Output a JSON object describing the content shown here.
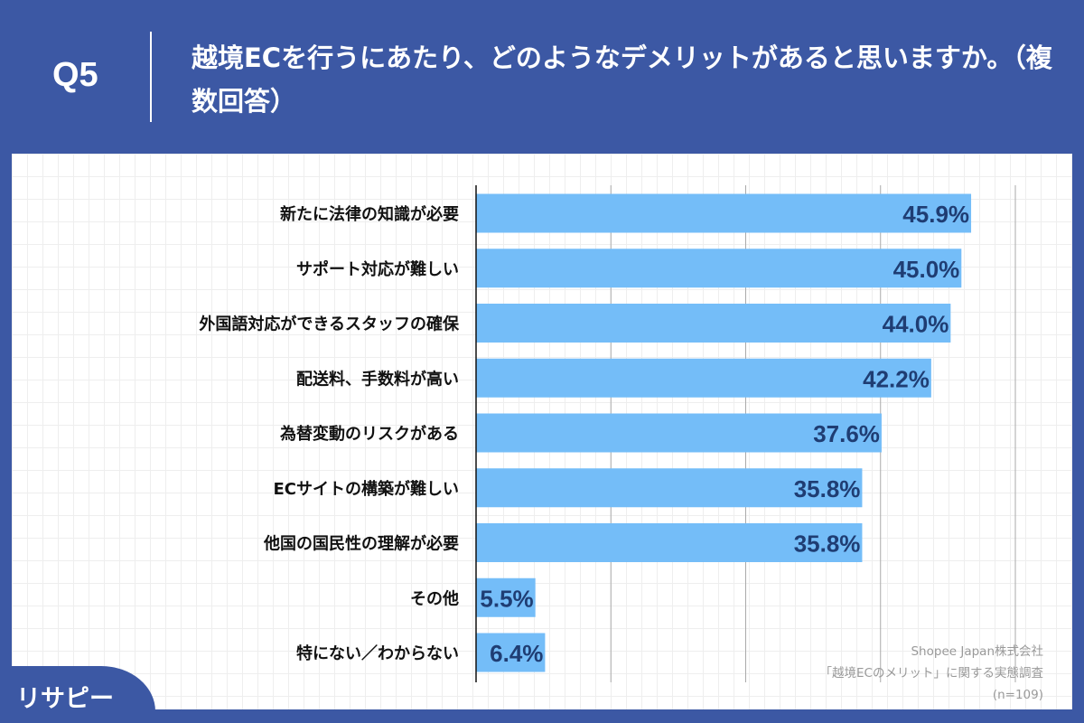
{
  "header": {
    "q_label": "Q5",
    "title": "越境ECを行うにあたり、どのようなデメリットがあると思いますか。（複数回答）"
  },
  "source": {
    "line1": "Shopee Japan株式会社",
    "line2": "「越境ECのメリット」に関する実態調査",
    "line3": "(n=109)"
  },
  "logo": {
    "text": "リサピー"
  },
  "colors": {
    "background": "#3c58a4",
    "bar": "#74bdf8",
    "value_label": "#1f3d73"
  },
  "chart_data": {
    "type": "bar",
    "orientation": "horizontal",
    "categories": [
      "新たに法律の知識が必要",
      "サポート対応が難しい",
      "外国語対応ができるスタッフの確保",
      "配送料、手数料が高い",
      "為替変動のリスクがある",
      "ECサイトの構築が難しい",
      "他国の国民性の理解が必要",
      "その他",
      "特にない／わからない"
    ],
    "values": [
      45.9,
      45.0,
      44.0,
      42.2,
      37.6,
      35.8,
      35.8,
      5.5,
      6.4
    ],
    "labels": [
      "45.9%",
      "45.0%",
      "44.0%",
      "42.2%",
      "37.6%",
      "35.8%",
      "35.8%",
      "5.5%",
      "6.4%"
    ],
    "xlim": [
      0,
      50
    ],
    "grid": true,
    "legend": "none"
  }
}
